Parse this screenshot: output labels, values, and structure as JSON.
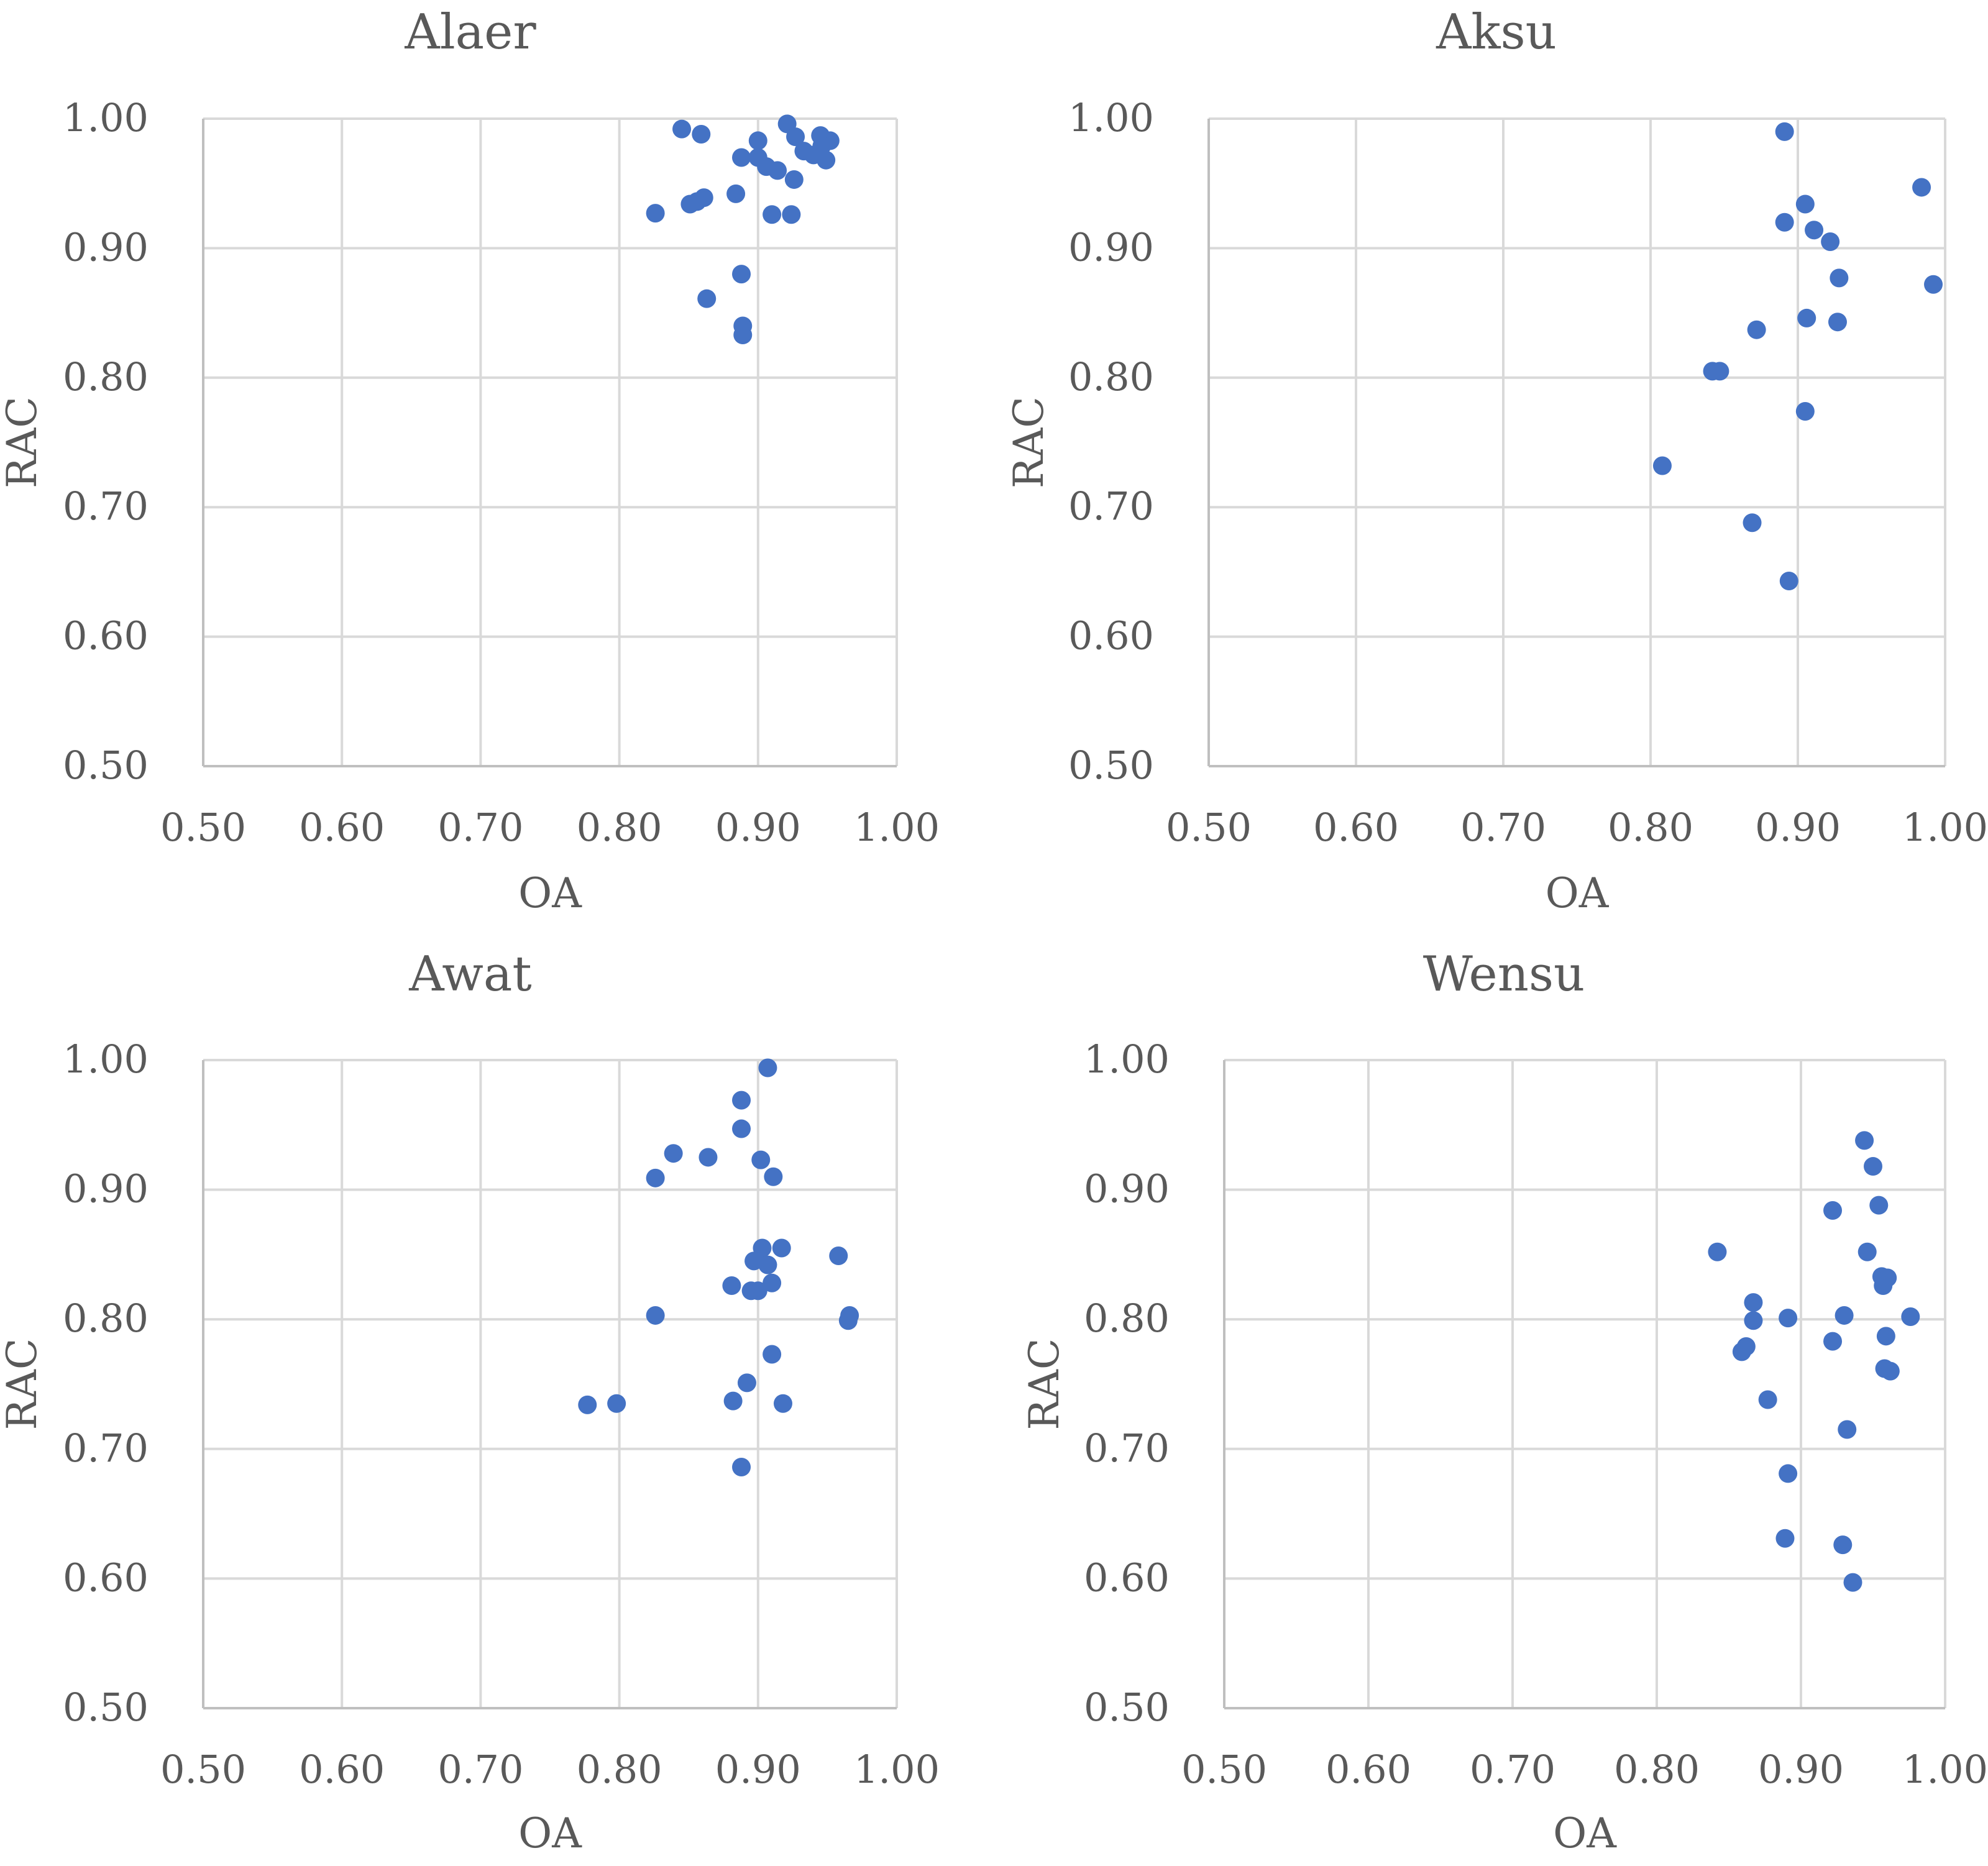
{
  "chart_data": [
    {
      "type": "scatter",
      "title": "Alaer",
      "xlabel": "OA",
      "ylabel": "RAC",
      "xlim": [
        0.5,
        1.0
      ],
      "ylim": [
        0.5,
        1.0
      ],
      "xticks": [
        "0.50",
        "0.60",
        "0.70",
        "0.80",
        "0.90",
        "1.00"
      ],
      "yticks": [
        "0.50",
        "0.60",
        "0.70",
        "0.80",
        "0.90",
        "1.00"
      ],
      "grid": true,
      "points": [
        [
          0.845,
          0.992
        ],
        [
          0.859,
          0.988
        ],
        [
          0.921,
          0.996
        ],
        [
          0.927,
          0.986
        ],
        [
          0.9,
          0.983
        ],
        [
          0.945,
          0.987
        ],
        [
          0.952,
          0.983
        ],
        [
          0.946,
          0.979
        ],
        [
          0.933,
          0.975
        ],
        [
          0.94,
          0.972
        ],
        [
          0.949,
          0.968
        ],
        [
          0.888,
          0.97
        ],
        [
          0.9,
          0.97
        ],
        [
          0.906,
          0.963
        ],
        [
          0.914,
          0.96
        ],
        [
          0.926,
          0.953
        ],
        [
          0.884,
          0.942
        ],
        [
          0.861,
          0.939
        ],
        [
          0.851,
          0.934
        ],
        [
          0.856,
          0.936
        ],
        [
          0.826,
          0.927
        ],
        [
          0.91,
          0.926
        ],
        [
          0.924,
          0.926
        ],
        [
          0.888,
          0.88
        ],
        [
          0.863,
          0.861
        ],
        [
          0.889,
          0.84
        ],
        [
          0.889,
          0.833
        ]
      ]
    },
    {
      "type": "scatter",
      "title": "Aksu",
      "xlabel": "OA",
      "ylabel": "RAC",
      "xlim": [
        0.5,
        1.0
      ],
      "ylim": [
        0.5,
        1.0
      ],
      "xticks": [
        "0.50",
        "0.60",
        "0.70",
        "0.80",
        "0.90",
        "1.00"
      ],
      "yticks": [
        "0.50",
        "0.60",
        "0.70",
        "0.80",
        "0.90",
        "1.00"
      ],
      "grid": true,
      "points": [
        [
          0.891,
          0.99
        ],
        [
          0.984,
          0.947
        ],
        [
          0.905,
          0.934
        ],
        [
          0.891,
          0.92
        ],
        [
          0.911,
          0.914
        ],
        [
          0.922,
          0.905
        ],
        [
          0.928,
          0.877
        ],
        [
          0.992,
          0.872
        ],
        [
          0.906,
          0.846
        ],
        [
          0.927,
          0.843
        ],
        [
          0.872,
          0.837
        ],
        [
          0.842,
          0.805
        ],
        [
          0.847,
          0.805
        ],
        [
          0.905,
          0.774
        ],
        [
          0.808,
          0.732
        ],
        [
          0.869,
          0.688
        ],
        [
          0.894,
          0.643
        ]
      ]
    },
    {
      "type": "scatter",
      "title": "Awat",
      "xlabel": "OA",
      "ylabel": "RAC",
      "xlim": [
        0.5,
        1.0
      ],
      "ylim": [
        0.5,
        1.0
      ],
      "xticks": [
        "0.50",
        "0.60",
        "0.70",
        "0.80",
        "0.90",
        "1.00"
      ],
      "yticks": [
        "0.50",
        "0.60",
        "0.70",
        "0.80",
        "0.90",
        "1.00"
      ],
      "grid": true,
      "points": [
        [
          0.907,
          0.994
        ],
        [
          0.888,
          0.969
        ],
        [
          0.888,
          0.947
        ],
        [
          0.839,
          0.928
        ],
        [
          0.864,
          0.925
        ],
        [
          0.902,
          0.923
        ],
        [
          0.826,
          0.909
        ],
        [
          0.911,
          0.91
        ],
        [
          0.903,
          0.855
        ],
        [
          0.917,
          0.855
        ],
        [
          0.958,
          0.849
        ],
        [
          0.897,
          0.845
        ],
        [
          0.907,
          0.842
        ],
        [
          0.881,
          0.826
        ],
        [
          0.91,
          0.828
        ],
        [
          0.895,
          0.822
        ],
        [
          0.9,
          0.822
        ],
        [
          0.826,
          0.803
        ],
        [
          0.966,
          0.803
        ],
        [
          0.965,
          0.799
        ],
        [
          0.91,
          0.773
        ],
        [
          0.892,
          0.751
        ],
        [
          0.777,
          0.734
        ],
        [
          0.798,
          0.735
        ],
        [
          0.882,
          0.737
        ],
        [
          0.918,
          0.735
        ],
        [
          0.888,
          0.686
        ]
      ]
    },
    {
      "type": "scatter",
      "title": "Wensu",
      "xlabel": "OA",
      "ylabel": "RAC",
      "xlim": [
        0.5,
        1.0
      ],
      "ylim": [
        0.5,
        1.0
      ],
      "xticks": [
        "0.50",
        "0.60",
        "0.70",
        "0.80",
        "0.90",
        "1.00"
      ],
      "yticks": [
        "0.50",
        "0.60",
        "0.70",
        "0.80",
        "0.90",
        "1.00"
      ],
      "grid": true,
      "points": [
        [
          0.944,
          0.938
        ],
        [
          0.95,
          0.918
        ],
        [
          0.954,
          0.888
        ],
        [
          0.922,
          0.884
        ],
        [
          0.946,
          0.852
        ],
        [
          0.842,
          0.852
        ],
        [
          0.956,
          0.833
        ],
        [
          0.96,
          0.832
        ],
        [
          0.957,
          0.826
        ],
        [
          0.867,
          0.813
        ],
        [
          0.867,
          0.799
        ],
        [
          0.891,
          0.801
        ],
        [
          0.93,
          0.803
        ],
        [
          0.976,
          0.802
        ],
        [
          0.959,
          0.787
        ],
        [
          0.922,
          0.783
        ],
        [
          0.862,
          0.779
        ],
        [
          0.859,
          0.775
        ],
        [
          0.958,
          0.762
        ],
        [
          0.962,
          0.76
        ],
        [
          0.877,
          0.738
        ],
        [
          0.932,
          0.715
        ],
        [
          0.891,
          0.681
        ],
        [
          0.889,
          0.631
        ],
        [
          0.929,
          0.626
        ],
        [
          0.936,
          0.597
        ]
      ]
    }
  ]
}
